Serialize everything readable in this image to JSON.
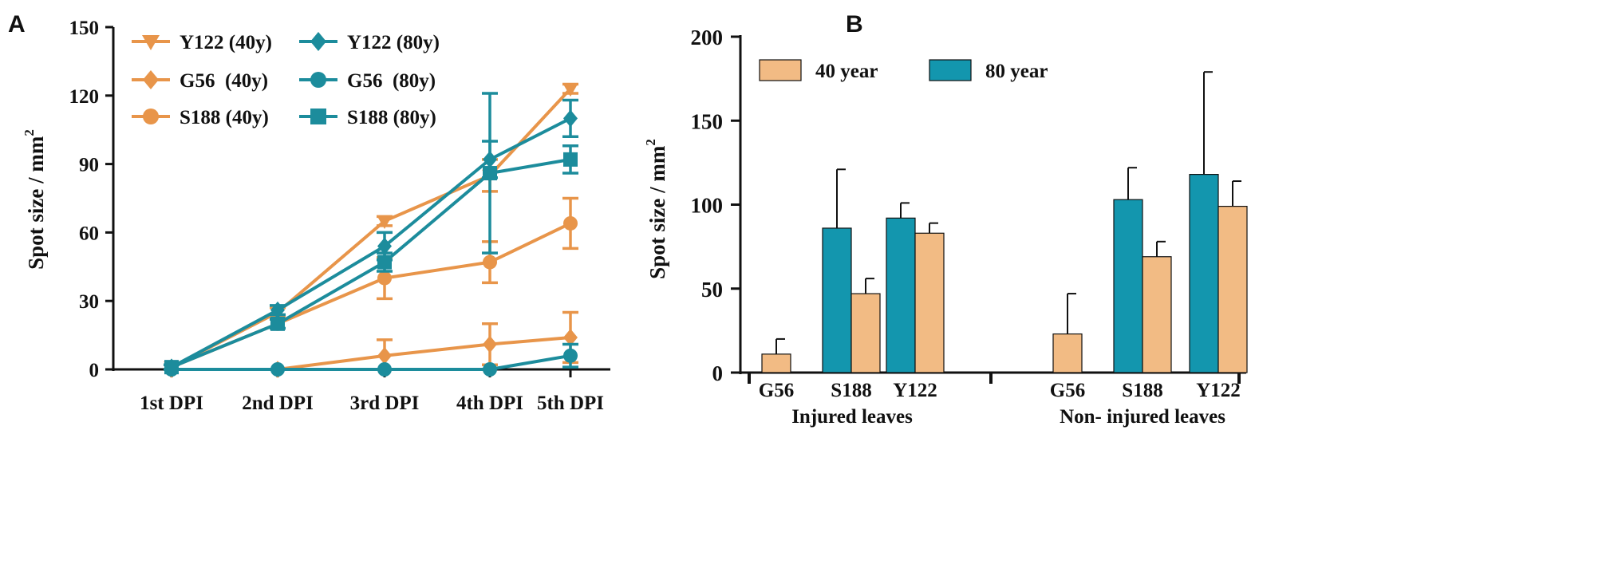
{
  "colors": {
    "orange": "#E8954A",
    "teal": "#1C8C9C",
    "bar_orange": "#F2BB84",
    "bar_teal": "#1396AE",
    "axis": "#111111"
  },
  "chart_data": [
    {
      "panel": "A",
      "type": "line",
      "ylabel": "Spot size / mm",
      "ylabel_sup": "2",
      "ylim": [
        0,
        150
      ],
      "yticks": [
        "0",
        "30",
        "60",
        "90",
        "120",
        "150"
      ],
      "categories": [
        "1st DPI",
        "2nd DPI",
        "3rd DPI",
        "4th DPI",
        "5th DPI"
      ],
      "legend_position": "top-left",
      "series": [
        {
          "name": "Y122 (40y)",
          "color": "orange",
          "marker": "triangle-down",
          "values": [
            1,
            25,
            65,
            85,
            123
          ],
          "errors": [
            1,
            2,
            2,
            7,
            2
          ]
        },
        {
          "name": "G56  (40y)",
          "color": "orange",
          "marker": "diamond",
          "values": [
            0,
            0,
            6,
            11,
            14
          ],
          "errors": [
            0,
            0,
            7,
            9,
            11
          ]
        },
        {
          "name": "S188 (40y)",
          "color": "orange",
          "marker": "circle",
          "values": [
            1,
            20,
            40,
            47,
            64
          ],
          "errors": [
            1,
            2,
            9,
            9,
            11
          ]
        },
        {
          "name": "Y122 (80y)",
          "color": "teal",
          "marker": "diamond",
          "values": [
            1,
            26,
            54,
            92,
            110
          ],
          "errors": [
            1,
            2,
            6,
            8,
            8
          ]
        },
        {
          "name": "G56  (80y)",
          "color": "teal",
          "marker": "circle",
          "values": [
            0,
            0,
            0,
            0,
            6
          ],
          "errors": [
            0,
            0,
            0,
            0,
            5
          ]
        },
        {
          "name": "S188 (80y)",
          "color": "teal",
          "marker": "square",
          "values": [
            1,
            20,
            47,
            86,
            92
          ],
          "errors": [
            1,
            2,
            4,
            35,
            6
          ]
        }
      ]
    },
    {
      "panel": "B",
      "type": "bar",
      "ylabel": "Spot size / mm",
      "ylabel_sup": "2",
      "ylim": [
        0,
        200
      ],
      "yticks": [
        "0",
        "50",
        "100",
        "150",
        "200"
      ],
      "legend_position": "top-left",
      "series_names": [
        "40 year",
        "80 year"
      ],
      "groups": [
        {
          "label": "Injured leaves",
          "categories": [
            "G56",
            "S188",
            "Y122"
          ],
          "bars": [
            {
              "category": "G56",
              "series": "40 year",
              "value": 11,
              "error": 9
            },
            {
              "category": "S188",
              "series": "80 year",
              "value": 86,
              "error": 35
            },
            {
              "category": "S188",
              "series": "40 year",
              "value": 47,
              "error": 9
            },
            {
              "category": "Y122",
              "series": "80 year",
              "value": 92,
              "error": 9
            },
            {
              "category": "Y122",
              "series": "40 year",
              "value": 83,
              "error": 6
            }
          ]
        },
        {
          "label": "Non- injured leaves",
          "categories": [
            "G56",
            "S188",
            "Y122"
          ],
          "bars": [
            {
              "category": "G56",
              "series": "40 year",
              "value": 23,
              "error": 24
            },
            {
              "category": "S188",
              "series": "80 year",
              "value": 103,
              "error": 19
            },
            {
              "category": "S188",
              "series": "40 year",
              "value": 69,
              "error": 9
            },
            {
              "category": "Y122",
              "series": "80 year",
              "value": 118,
              "error": 61
            },
            {
              "category": "Y122",
              "series": "40 year",
              "value": 99,
              "error": 15
            }
          ]
        }
      ]
    }
  ]
}
